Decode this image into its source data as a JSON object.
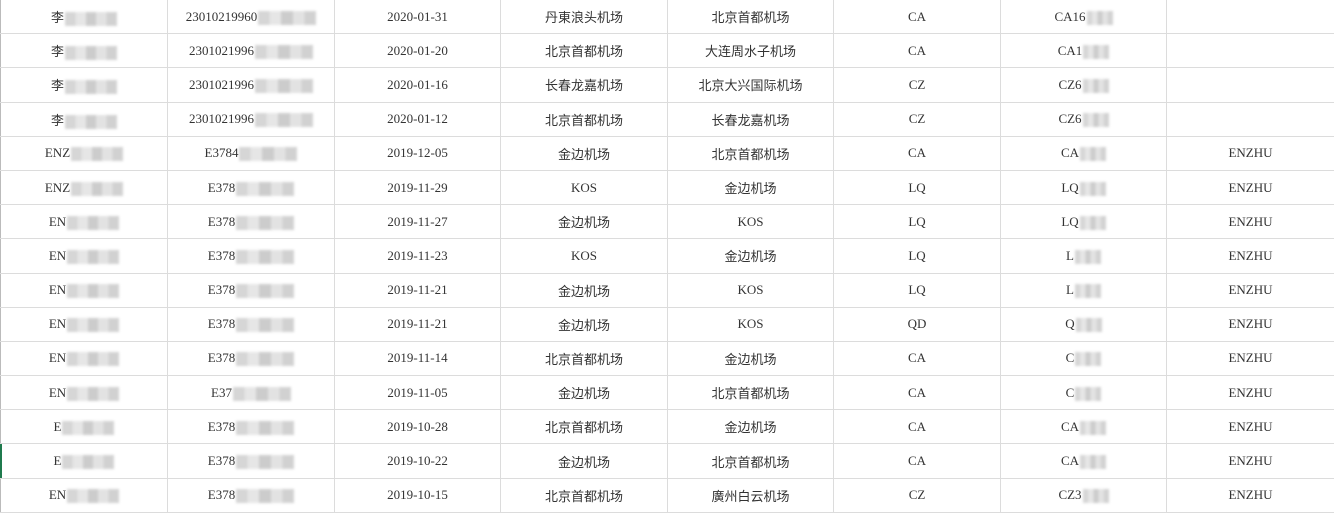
{
  "rows": [
    {
      "name": "李",
      "id": "23010219960",
      "date": "2020-01-31",
      "from": "丹東浪头机场",
      "to": "北京首都机场",
      "airline": "CA",
      "flight": "CA16",
      "passenger": ""
    },
    {
      "name": "李",
      "id": "2301021996",
      "date": "2020-01-20",
      "from": "北京首都机场",
      "to": "大连周水子机场",
      "airline": "CA",
      "flight": "CA1",
      "passenger": ""
    },
    {
      "name": "李",
      "id": "2301021996",
      "date": "2020-01-16",
      "from": "长春龙嘉机场",
      "to": "北京大兴国际机场",
      "airline": "CZ",
      "flight": "CZ6",
      "passenger": ""
    },
    {
      "name": "李",
      "id": "2301021996",
      "date": "2020-01-12",
      "from": "北京首都机场",
      "to": "长春龙嘉机场",
      "airline": "CZ",
      "flight": "CZ6",
      "passenger": ""
    },
    {
      "name": "ENZ",
      "id": "E3784",
      "date": "2019-12-05",
      "from": "金边机场",
      "to": "北京首都机场",
      "airline": "CA",
      "flight": "CA",
      "passenger": "ENZHU"
    },
    {
      "name": "ENZ",
      "id": "E378",
      "date": "2019-11-29",
      "from": "KOS",
      "to": "金边机场",
      "airline": "LQ",
      "flight": "LQ",
      "passenger": "ENZHU"
    },
    {
      "name": "EN",
      "id": "E378",
      "date": "2019-11-27",
      "from": "金边机场",
      "to": "KOS",
      "airline": "LQ",
      "flight": "LQ",
      "passenger": "ENZHU"
    },
    {
      "name": "EN",
      "id": "E378",
      "date": "2019-11-23",
      "from": "KOS",
      "to": "金边机场",
      "airline": "LQ",
      "flight": "L",
      "passenger": "ENZHU"
    },
    {
      "name": "EN",
      "id": "E378",
      "date": "2019-11-21",
      "from": "金边机场",
      "to": "KOS",
      "airline": "LQ",
      "flight": "L",
      "passenger": "ENZHU"
    },
    {
      "name": "EN",
      "id": "E378",
      "date": "2019-11-21",
      "from": "金边机场",
      "to": "KOS",
      "airline": "QD",
      "flight": "Q",
      "passenger": "ENZHU"
    },
    {
      "name": "EN",
      "id": "E378",
      "date": "2019-11-14",
      "from": "北京首都机场",
      "to": "金边机场",
      "airline": "CA",
      "flight": "C",
      "passenger": "ENZHU"
    },
    {
      "name": "EN",
      "id": "E37",
      "date": "2019-11-05",
      "from": "金边机场",
      "to": "北京首都机场",
      "airline": "CA",
      "flight": "C",
      "passenger": "ENZHU"
    },
    {
      "name": "E",
      "id": "E378",
      "date": "2019-10-28",
      "from": "北京首都机场",
      "to": "金边机场",
      "airline": "CA",
      "flight": "CA",
      "passenger": "ENZHU"
    },
    {
      "name": "E",
      "id": "E378",
      "date": "2019-10-22",
      "from": "金边机场",
      "to": "北京首都机场",
      "airline": "CA",
      "flight": "CA",
      "passenger": "ENZHU"
    },
    {
      "name": "EN",
      "id": "E378",
      "date": "2019-10-15",
      "from": "北京首都机场",
      "to": "廣州白云机场",
      "airline": "CZ",
      "flight": "CZ3",
      "passenger": "ENZHU"
    }
  ]
}
